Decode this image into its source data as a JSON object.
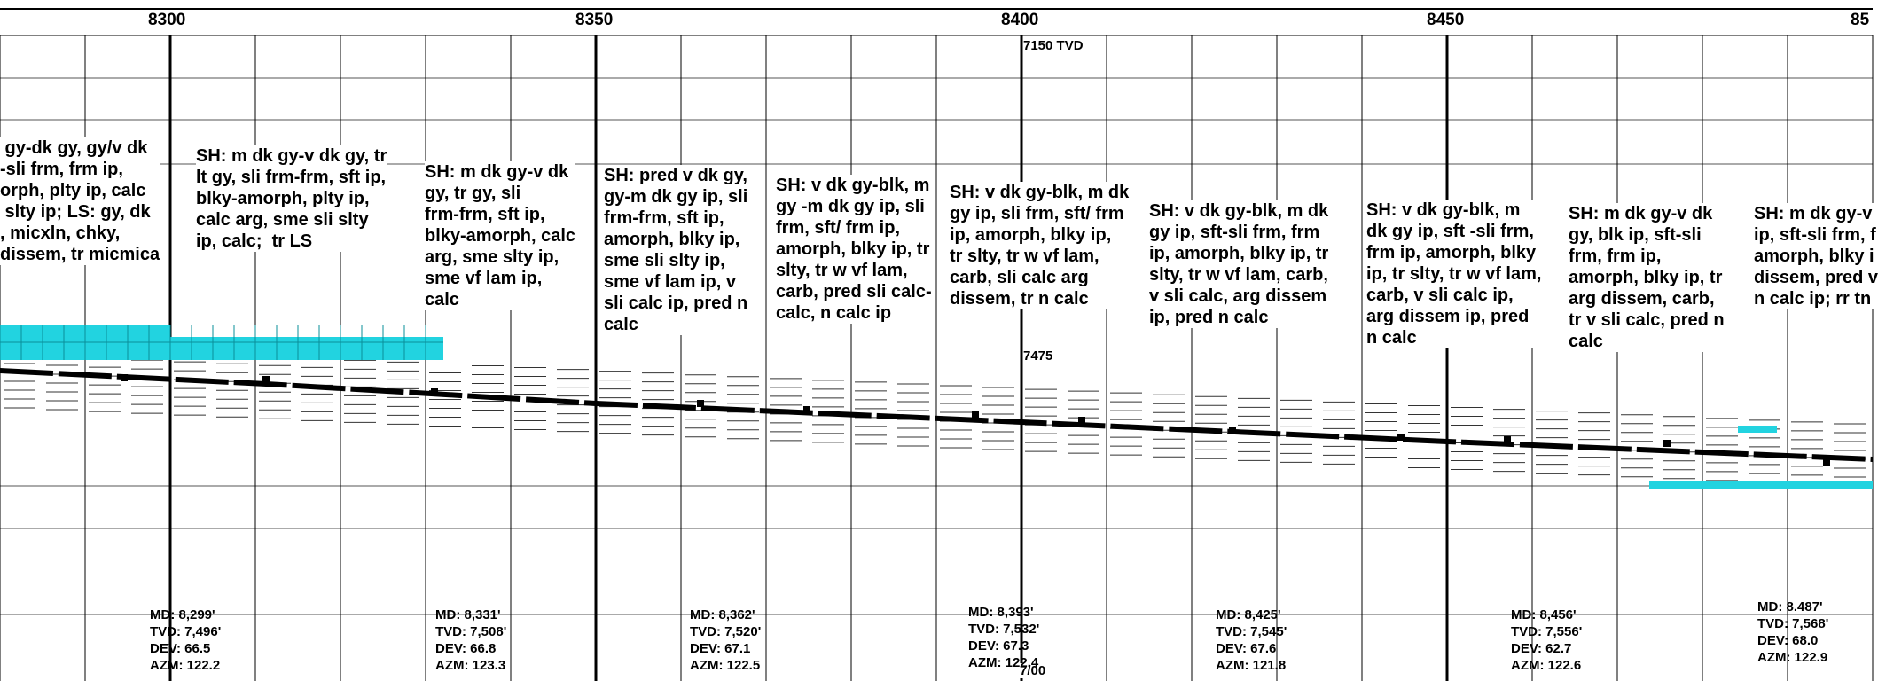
{
  "depth_scale": [
    "8300",
    "8350",
    "8400",
    "8450",
    "85"
  ],
  "markers": {
    "tvd_7150": "7150 TVD",
    "tvd_7475": "7475",
    "bottom_mark": "7/00"
  },
  "descriptions": [
    " gy-dk gy, gy/v dk\n-sli frm, frm ip,\norph, plty ip, calc\n slty ip; LS: gy, dk\n, micxln, chky,\ndissem, tr micmica",
    "SH: m dk gy-v dk gy, tr\nlt gy, sli frm-frm, sft ip,\nblky-amorph, plty ip,\ncalc arg, sme sli slty\nip, calc;  tr LS",
    "SH: m dk gy-v dk\ngy, tr gy, sli\nfrm-frm, sft ip,\nblky-amorph, calc\narg, sme slty ip,\nsme vf lam ip,\ncalc",
    "SH: pred v dk gy,\ngy-m dk gy ip, sli\nfrm-frm, sft ip,\namorph, blky ip,\nsme sli slty ip,\nsme vf lam ip, v\nsli calc ip, pred n\ncalc",
    "SH: v dk gy-blk, m\ngy -m dk gy ip, sli\nfrm, sft/ frm ip,\namorph, blky ip, tr\nslty, tr w vf lam,\ncarb, pred sli calc-\ncalc, n calc ip",
    "SH: v dk gy-blk, m dk\ngy ip, sli frm, sft/ frm\nip, amorph, blky ip,\ntr slty, tr w vf lam,\ncarb, sli calc arg\ndissem, tr n calc",
    "SH: v dk gy-blk, m dk\ngy ip, sft-sli frm, frm\nip, amorph, blky ip, tr\nslty, tr w vf lam, carb,\nv sli calc, arg dissem\nip, pred n calc",
    "SH: v dk gy-blk, m\ndk gy ip, sft -sli frm,\nfrm ip, amorph, blky\nip, tr slty, tr w vf lam,\ncarb, v sli calc ip,\narg dissem ip, pred\nn calc",
    "SH: m dk gy-v dk\ngy, blk ip, sft-sli\nfrm, frm ip,\namorph, blky ip, tr\narg dissem, carb,\ntr v sli calc, pred n\ncalc",
    "SH: m dk gy-v\nip, sft-sli frm, f\namorph, blky i\ndissem, pred v\nn calc ip; rr tn"
  ],
  "surveys": [
    "MD: 8,299'\nTVD: 7,496'\nDEV: 66.5\nAZM: 122.2",
    "MD: 8,331'\nTVD: 7,508'\nDEV: 66.8\nAZM: 123.3",
    "MD: 8,362'\nTVD: 7,520'\nDEV: 67.1\nAZM: 122.5",
    "MD: 8,393'\nTVD: 7,532'\nDEV: 67.3\nAZM: 122.4",
    "MD: 8,425'\nTVD: 7,545'\nDEV: 67.6\nAZM: 121.8",
    "MD: 8,456'\nTVD: 7,556'\nDEV: 62.7\nAZM: 122.6",
    "MD: 8.487'\nTVD: 7,568'\nDEV: 68.0\nAZM: 122.9"
  ],
  "lithology_colors": {
    "limestone": "#22d3e0",
    "shale_line": "#333333",
    "grid": "#000000"
  }
}
